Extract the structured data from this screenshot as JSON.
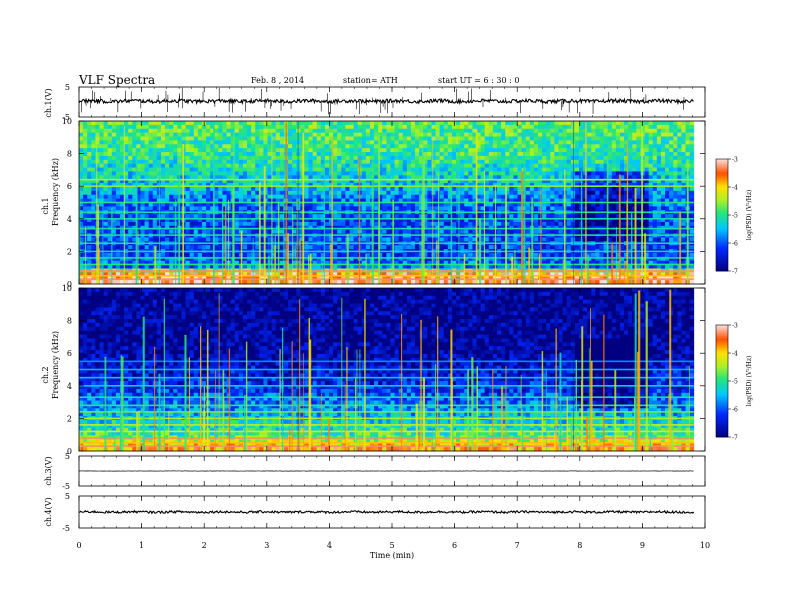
{
  "header": {
    "title": "VLF Spectra",
    "date": "Feb. 8 , 2014",
    "station": "station= ATH",
    "start": "start UT =  6 : 30 : 0"
  },
  "chart_data": {
    "type": "heatmap",
    "x_axis": {
      "label": "Time (min)",
      "range": [
        0,
        10
      ],
      "ticks": [
        "0",
        "1",
        "2",
        "3",
        "4",
        "5",
        "6",
        "7",
        "8",
        "9",
        "10"
      ],
      "data_end": 9.82
    },
    "panels": [
      {
        "id": "ch1-waveform",
        "type": "line",
        "ylabel": "ch.1(V)",
        "ylim": [
          -5,
          5
        ],
        "yticks": [
          "5",
          "-5"
        ],
        "baseline": 0.3,
        "noise": 0.6,
        "spikes": 70
      },
      {
        "id": "ch1-spectrogram",
        "type": "heatmap",
        "ylabel_top": "ch.1",
        "ylabel": "Frequency (kHz)",
        "ylim": [
          0,
          10
        ],
        "yticks": [
          "0",
          "2",
          "4",
          "6",
          "8",
          "10"
        ],
        "colorbar": {
          "label": "log(PSD) (V²/Hz)",
          "ticks": [
            "-3",
            "-4",
            "-5",
            "-6",
            "-7"
          ],
          "range": [
            -7,
            -3
          ]
        },
        "segment_breaks_min": [
          3.5,
          7.9
        ],
        "lines_khz": [
          0.3,
          0.5,
          0.8,
          1.2,
          1.6,
          2.0,
          2.5,
          3.0,
          3.4,
          4.0,
          4.4,
          5.0,
          6.0,
          6.4
        ],
        "mean_log_psd_by_khz": [
          [
            0.0,
            -3.3
          ],
          [
            0.3,
            -3.2
          ],
          [
            0.6,
            -3.5
          ],
          [
            1.0,
            -5.8
          ],
          [
            2.0,
            -6.2
          ],
          [
            3.0,
            -6.0
          ],
          [
            4.0,
            -6.1
          ],
          [
            5.0,
            -5.9
          ],
          [
            6.0,
            -5.5
          ],
          [
            7.0,
            -5.2
          ],
          [
            8.0,
            -5.0
          ],
          [
            9.0,
            -4.9
          ],
          [
            10.0,
            -4.8
          ]
        ],
        "quiet_interval_min": [
          7.9,
          9.1
        ]
      },
      {
        "id": "ch2-spectrogram",
        "type": "heatmap",
        "ylabel_top": "ch.2",
        "ylabel": "Frequency (kHz)",
        "ylim": [
          0,
          10
        ],
        "yticks": [
          "0",
          "2",
          "4",
          "6",
          "8",
          "10"
        ],
        "colorbar": {
          "label": "log(PSD) (V²/Hz)",
          "ticks": [
            "-3",
            "-4",
            "-5",
            "-6",
            "-7"
          ],
          "range": [
            -7,
            -3
          ]
        },
        "segment_breaks_min": [
          3.5,
          7.9
        ],
        "lines_khz": [
          0.3,
          0.5,
          0.8,
          1.2,
          1.6,
          2.0,
          2.4,
          2.8,
          3.3,
          4.0,
          4.5,
          5.0,
          5.5
        ],
        "mean_log_psd_by_khz": [
          [
            0.0,
            -3.6
          ],
          [
            0.5,
            -4.2
          ],
          [
            1.0,
            -5.0
          ],
          [
            2.0,
            -5.4
          ],
          [
            3.0,
            -5.9
          ],
          [
            4.0,
            -6.3
          ],
          [
            5.0,
            -6.5
          ],
          [
            6.0,
            -6.8
          ],
          [
            7.0,
            -6.9
          ],
          [
            8.0,
            -6.9
          ],
          [
            9.0,
            -6.9
          ],
          [
            10.0,
            -6.9
          ]
        ],
        "quiet_interval_min": [
          7.9,
          9.1
        ]
      },
      {
        "id": "ch3-waveform",
        "type": "line",
        "ylabel": "ch.3(V)",
        "ylim": [
          -5,
          5
        ],
        "yticks": [
          "5",
          "-5"
        ],
        "baseline": 0.0,
        "noise": 0.05,
        "spikes": 0
      },
      {
        "id": "ch4-waveform",
        "type": "line",
        "ylabel": "ch.4(V)",
        "ylim": [
          -5,
          5
        ],
        "yticks": [
          "5",
          "-5"
        ],
        "baseline": 0.0,
        "noise": 0.35,
        "spikes": 0
      }
    ]
  }
}
